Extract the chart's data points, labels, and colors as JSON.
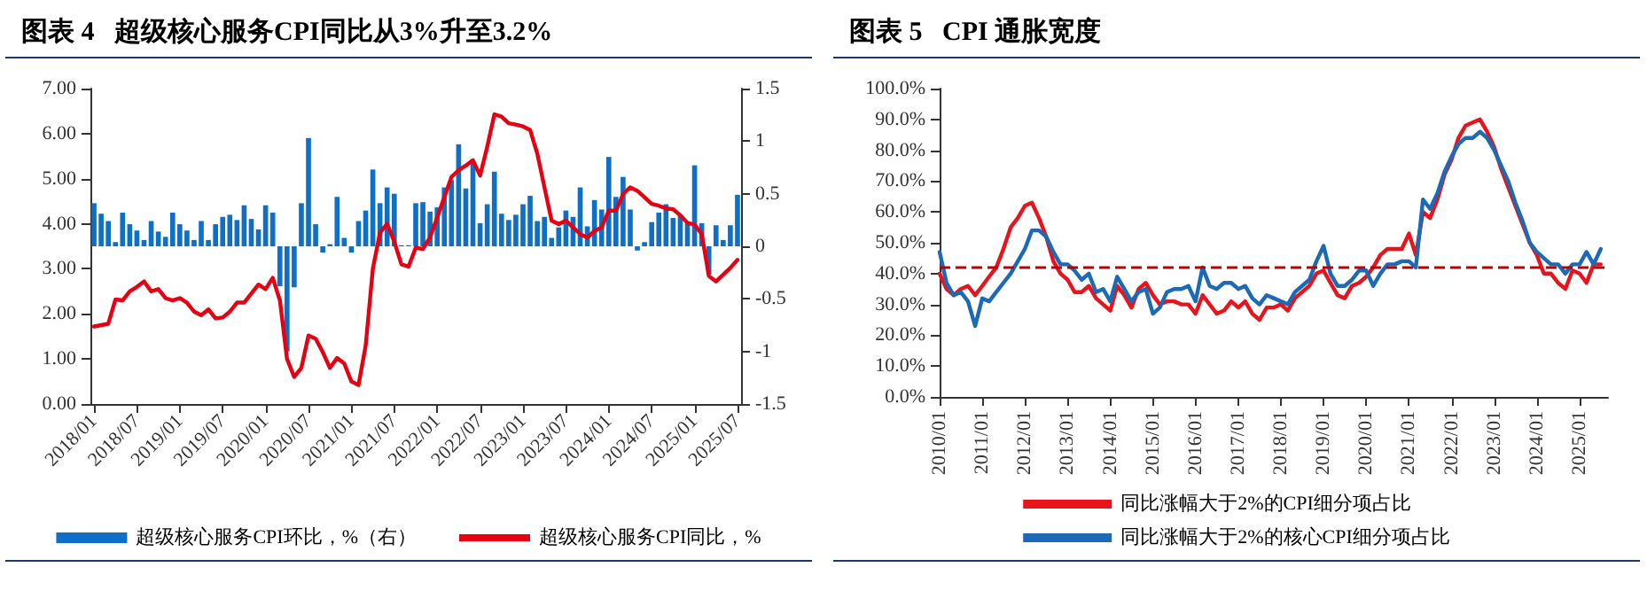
{
  "chart_data": [
    {
      "type": "bar",
      "title": "图表 4   超级核心服务CPI同比从3%升至3.2%",
      "categories": [
        "2018/01",
        null,
        null,
        null,
        null,
        null,
        "2018/07",
        null,
        null,
        null,
        null,
        null,
        "2019/01",
        null,
        null,
        null,
        null,
        null,
        "2019/07",
        null,
        null,
        null,
        null,
        null,
        "2020/01",
        null,
        null,
        null,
        null,
        null,
        "2020/07",
        null,
        null,
        null,
        null,
        null,
        "2021/01",
        null,
        null,
        null,
        null,
        null,
        "2021/07",
        null,
        null,
        null,
        null,
        null,
        "2022/01",
        null,
        null,
        null,
        null,
        null,
        "2022/07",
        null,
        null,
        null,
        null,
        null,
        "2023/01",
        null,
        null,
        null,
        null,
        null,
        "2023/07",
        null,
        null,
        null,
        null,
        null,
        "2024/01",
        null,
        null,
        null,
        null,
        null,
        "2024/07",
        null,
        null,
        null,
        null,
        null,
        "2025/01",
        null,
        null,
        null,
        null,
        null,
        "2025/07"
      ],
      "series": [
        {
          "name": "超级核心服务CPI环比，%（右）",
          "axis": "y2",
          "color": "#0f6fc6",
          "values": [
            0.41,
            0.31,
            0.24,
            0.04,
            0.32,
            0.21,
            0.15,
            0.06,
            0.24,
            0.14,
            0.09,
            0.32,
            0.21,
            0.15,
            0.06,
            0.24,
            0.06,
            0.21,
            0.28,
            0.3,
            0.25,
            0.39,
            0.26,
            0.16,
            0.39,
            0.32,
            -0.38,
            -1.0,
            -0.39,
            0.41,
            1.03,
            0.21,
            -0.06,
            0.02,
            0.47,
            0.08,
            -0.06,
            0.24,
            0.34,
            0.73,
            0.41,
            0.56,
            0.5,
            0.01,
            0.01,
            0.41,
            0.42,
            0.33,
            0.37,
            0.56,
            0.63,
            0.97,
            0.55,
            0.8,
            0.22,
            0.4,
            0.71,
            0.31,
            0.25,
            0.3,
            0.4,
            0.48,
            0.24,
            0.28,
            0.08,
            0.18,
            0.34,
            0.28,
            0.56,
            0.19,
            0.44,
            0.35,
            0.85,
            0.47,
            0.66,
            0.35,
            -0.04,
            0.04,
            0.23,
            0.32,
            0.4,
            0.27,
            0.3,
            0.22,
            0.77,
            0.22,
            -0.27,
            0.2,
            0.06,
            0.2,
            0.49
          ]
        },
        {
          "name": "超级核心服务CPI同比，%",
          "type": "line",
          "color": "#e60012",
          "values": [
            1.72,
            1.75,
            1.78,
            2.32,
            2.3,
            2.5,
            2.6,
            2.72,
            2.5,
            2.55,
            2.35,
            2.3,
            2.35,
            2.25,
            2.05,
            1.97,
            2.1,
            1.9,
            1.92,
            2.05,
            2.25,
            2.25,
            2.45,
            2.65,
            2.55,
            2.8,
            2.3,
            1.0,
            0.6,
            0.8,
            1.52,
            1.45,
            1.15,
            0.8,
            1.02,
            0.9,
            0.5,
            0.42,
            1.3,
            3.0,
            3.8,
            4.0,
            3.6,
            3.1,
            3.05,
            3.47,
            3.44,
            3.7,
            4.14,
            4.59,
            5.04,
            5.19,
            5.29,
            5.41,
            5.07,
            5.71,
            6.43,
            6.38,
            6.23,
            6.2,
            6.16,
            6.08,
            5.56,
            4.81,
            4.07,
            3.99,
            4.07,
            3.92,
            3.77,
            3.69,
            3.84,
            3.92,
            4.29,
            4.29,
            4.66,
            4.81,
            4.73,
            4.59,
            4.44,
            4.4,
            4.34,
            4.32,
            4.19,
            4.02,
            3.98,
            3.77,
            2.84,
            2.72,
            2.87,
            3.02,
            3.2
          ]
        }
      ],
      "ylim": [
        0,
        7
      ],
      "yticks": [
        {
          "value": 0,
          "label": "0.00"
        },
        {
          "value": 1,
          "label": "1.00"
        },
        {
          "value": 2,
          "label": "2.00"
        },
        {
          "value": 3,
          "label": "3.00"
        },
        {
          "value": 4,
          "label": "4.00"
        },
        {
          "value": 5,
          "label": "5.00"
        },
        {
          "value": 6,
          "label": "6.00"
        },
        {
          "value": 7,
          "label": "7.00"
        }
      ],
      "y2lim": [
        -1.5,
        1.5
      ],
      "y2ticks": [
        -1.5,
        -1,
        -0.5,
        0,
        0.5,
        1,
        1.5
      ],
      "grid": false,
      "legend": "bottom",
      "marker": "none"
    },
    {
      "type": "line",
      "title": "图表 5   CPI 通胀宽度",
      "x": [
        "2010-01",
        "2010-03",
        "2010-05",
        "2010-07",
        "2010-09",
        "2010-11",
        "2011-01",
        "2011-03",
        "2011-05",
        "2011-07",
        "2011-09",
        "2011-11",
        "2012-01",
        "2012-03",
        "2012-05",
        "2012-07",
        "2012-09",
        "2012-11",
        "2013-01",
        "2013-03",
        "2013-05",
        "2013-07",
        "2013-09",
        "2013-11",
        "2014-01",
        "2014-03",
        "2014-05",
        "2014-07",
        "2014-09",
        "2014-11",
        "2015-01",
        "2015-03",
        "2015-05",
        "2015-07",
        "2015-09",
        "2015-11",
        "2016-01",
        "2016-03",
        "2016-05",
        "2016-07",
        "2016-09",
        "2016-11",
        "2017-01",
        "2017-03",
        "2017-05",
        "2017-07",
        "2017-09",
        "2017-11",
        "2018-01",
        "2018-03",
        "2018-05",
        "2018-07",
        "2018-09",
        "2018-11",
        "2019-01",
        "2019-03",
        "2019-05",
        "2019-07",
        "2019-09",
        "2019-11",
        "2020-01",
        "2020-03",
        "2020-05",
        "2020-07",
        "2020-09",
        "2020-11",
        "2021-01",
        "2021-03",
        "2021-05",
        "2021-07",
        "2021-09",
        "2021-11",
        "2022-01",
        "2022-03",
        "2022-05",
        "2022-07",
        "2022-09",
        "2022-11",
        "2023-01",
        "2023-03",
        "2023-05",
        "2023-07",
        "2023-09",
        "2023-11",
        "2024-01",
        "2024-03",
        "2024-05",
        "2024-07",
        "2024-09",
        "2024-11",
        "2025-01",
        "2025-03",
        "2025-05",
        "2025-07"
      ],
      "series": [
        {
          "name": "同比涨幅大于2%的CPI细分项占比",
          "color": "#e8141c",
          "values": [
            40,
            35,
            33,
            35,
            36,
            33,
            36,
            39,
            42,
            48,
            55,
            58,
            62,
            63,
            58,
            52,
            44,
            40,
            38,
            34,
            34,
            36,
            32,
            30,
            28,
            36,
            33,
            29,
            35,
            37,
            33,
            30,
            31,
            31,
            30,
            30,
            27,
            33,
            30,
            27,
            28,
            31,
            29,
            31,
            27,
            25,
            29,
            29,
            30,
            28,
            32,
            34,
            36,
            40,
            41,
            37,
            33,
            32,
            36,
            37,
            39,
            42,
            46,
            48,
            48,
            48,
            53,
            46,
            60,
            58,
            64,
            72,
            77,
            84,
            88,
            89,
            90,
            86,
            81,
            74,
            68,
            62,
            56,
            50,
            46,
            40,
            40,
            37,
            35,
            41,
            40,
            37,
            43,
            43
          ]
        },
        {
          "name": "同比涨幅大于2%的核心CPI细分项占比",
          "color": "#1c6ab5",
          "values": [
            47,
            37,
            33,
            34,
            31,
            23,
            32,
            31,
            34,
            37,
            40,
            44,
            48,
            54,
            54,
            52,
            47,
            43,
            43,
            41,
            38,
            40,
            34,
            35,
            31,
            39,
            35,
            31,
            34,
            35,
            27,
            29,
            34,
            35,
            35,
            36,
            31,
            42,
            36,
            35,
            37,
            37,
            35,
            36,
            32,
            30,
            33,
            32,
            31,
            30,
            34,
            36,
            38,
            44,
            49,
            40,
            36,
            36,
            38,
            41,
            41,
            36,
            40,
            43,
            43,
            44,
            44,
            42,
            64,
            61,
            66,
            73,
            78,
            82,
            84,
            84,
            86,
            84,
            80,
            75,
            70,
            63,
            57,
            50,
            47,
            45,
            43,
            43,
            40,
            43,
            43,
            47,
            43,
            48
          ]
        }
      ],
      "xlim": [
        "2010-01",
        "2025-09"
      ],
      "xticks": [
        {
          "value": "2010-01",
          "label": "2010/01"
        },
        {
          "value": "2011-01",
          "label": "2011/01"
        },
        {
          "value": "2012-01",
          "label": "2012/01"
        },
        {
          "value": "2013-01",
          "label": "2013/01"
        },
        {
          "value": "2014-01",
          "label": "2014/01"
        },
        {
          "value": "2015-01",
          "label": "2015/01"
        },
        {
          "value": "2016-01",
          "label": "2016/01"
        },
        {
          "value": "2017-01",
          "label": "2017/01"
        },
        {
          "value": "2018-01",
          "label": "2018/01"
        },
        {
          "value": "2019-01",
          "label": "2019/01"
        },
        {
          "value": "2020-01",
          "label": "2020/01"
        },
        {
          "value": "2021-01",
          "label": "2021/01"
        },
        {
          "value": "2022-01",
          "label": "2022/01"
        },
        {
          "value": "2023-01",
          "label": "2023/01"
        },
        {
          "value": "2024-01",
          "label": "2024/01"
        },
        {
          "value": "2025-01",
          "label": "2025/01"
        }
      ],
      "ylim": [
        0,
        100
      ],
      "yticks": [
        {
          "value": 0,
          "label": "0.0%"
        },
        {
          "value": 10,
          "label": "10.0%"
        },
        {
          "value": 20,
          "label": "20.0%"
        },
        {
          "value": 30,
          "label": "30.0%"
        },
        {
          "value": 40,
          "label": "40.0%"
        },
        {
          "value": 50,
          "label": "50.0%"
        },
        {
          "value": 60,
          "label": "60.0%"
        },
        {
          "value": 70,
          "label": "70.0%"
        },
        {
          "value": 80,
          "label": "80.0%"
        },
        {
          "value": 90,
          "label": "90.0%"
        },
        {
          "value": 100,
          "label": "100.0%"
        }
      ],
      "ref_lines": [
        {
          "axis": "y",
          "value": 42,
          "color": "#c00000",
          "line_style": "dashed"
        }
      ],
      "grid": false,
      "legend": "bottom",
      "marker": "none"
    }
  ]
}
